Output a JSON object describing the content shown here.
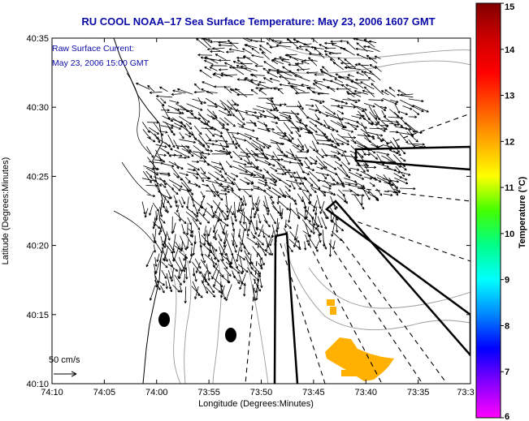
{
  "title": "RU COOL  NOAA–17  Sea Surface Temperature:  May 23, 2006 1607 GMT",
  "annotation": {
    "line1": "Raw Surface Current:",
    "line2": "May 23, 2006 15:00 GMT"
  },
  "scale_label": "50 cm/s",
  "xlabel": "Longitude (Degrees:Minutes)",
  "ylabel": "Latitude (Degrees:Minutes)",
  "x_ticks": [
    "74:10",
    "74:05",
    "74:00",
    "73:55",
    "73:50",
    "73:45",
    "73:40",
    "73:35",
    "73:3"
  ],
  "y_ticks": [
    "40:35",
    "40:30",
    "40:25",
    "40:20",
    "40:15",
    "40:10"
  ],
  "colorbar": {
    "label": "Temperature (°C)",
    "ticks": [
      "15",
      "14",
      "13",
      "12",
      "11",
      "10",
      "9",
      "8",
      "7",
      "6"
    ],
    "stops": [
      "#ff00ff",
      "#8800ff",
      "#0000ff",
      "#0088ff",
      "#00ffff",
      "#00ff88",
      "#44ff00",
      "#ffff00",
      "#ffaa00",
      "#ff5500",
      "#ff0000",
      "#cc0000",
      "#800000"
    ]
  },
  "colors": {
    "title": "#0a0aa8",
    "sst_patch": "#ffb000",
    "land": "#ffffff",
    "contour": "#9a9a9a"
  }
}
